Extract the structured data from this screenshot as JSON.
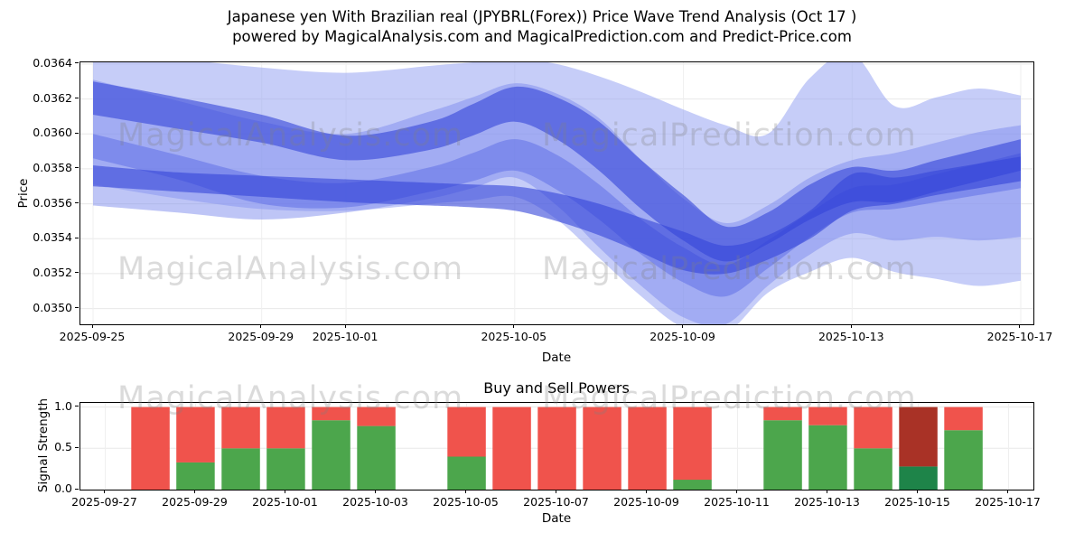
{
  "title": {
    "line1": "Japanese yen With Brazilian real (JPYBRL(Forex)) Price Wave Trend Analysis (Oct 17 )",
    "line2": "powered by MagicalAnalysis.com and MagicalPrediction.com and Predict-Price.com"
  },
  "watermarks": {
    "analysis": "MagicalAnalysis.com",
    "prediction": "MagicalPrediction.com"
  },
  "chart_data": [
    {
      "type": "area",
      "title": "Japanese yen With Brazilian real (JPYBRL(Forex)) Price Wave Trend Analysis (Oct 17 )",
      "xlabel": "Date",
      "ylabel": "Price",
      "ylim": [
        0.03491,
        0.03641
      ],
      "x_days_from": "2025-09-25",
      "x": [
        0,
        2,
        4,
        6,
        8,
        9,
        10,
        11,
        12,
        13,
        14,
        15,
        16,
        17,
        18,
        19,
        20,
        21,
        22
      ],
      "bands": [
        {
          "name": "outer-light",
          "color": "#98a4f2",
          "opacity": 0.55,
          "upper": [
            0.03648,
            0.03643,
            0.03638,
            0.03635,
            0.03639,
            0.03641,
            0.03643,
            0.0364,
            0.03633,
            0.03624,
            0.03614,
            0.03605,
            0.036,
            0.03632,
            0.03646,
            0.03616,
            0.03621,
            0.03626,
            0.03622
          ],
          "lower": [
            0.03571,
            0.03563,
            0.03557,
            0.03556,
            0.0356,
            0.03562,
            0.03564,
            0.03551,
            0.03529,
            0.03507,
            0.03489,
            0.03486,
            0.03509,
            0.03521,
            0.03529,
            0.03521,
            0.03517,
            0.03513,
            0.03516
          ]
        },
        {
          "name": "mid-light",
          "color": "#7d8bee",
          "opacity": 0.5,
          "upper": [
            0.03631,
            0.03619,
            0.03607,
            0.036,
            0.03613,
            0.03621,
            0.03629,
            0.03623,
            0.03609,
            0.03585,
            0.03563,
            0.03549,
            0.03559,
            0.03575,
            0.03585,
            0.03589,
            0.03595,
            0.03601,
            0.03605
          ],
          "lower": [
            0.03559,
            0.03555,
            0.03551,
            0.03555,
            0.03563,
            0.03569,
            0.03575,
            0.03559,
            0.03535,
            0.03513,
            0.03495,
            0.03491,
            0.03513,
            0.03531,
            0.03543,
            0.03539,
            0.03541,
            0.03539,
            0.03541
          ]
        },
        {
          "name": "mid",
          "color": "#5a6ae6",
          "opacity": 0.5,
          "upper": [
            0.036,
            0.03588,
            0.03576,
            0.03572,
            0.03581,
            0.03589,
            0.03597,
            0.03588,
            0.03571,
            0.03551,
            0.03535,
            0.03525,
            0.03539,
            0.03555,
            0.03569,
            0.03571,
            0.03577,
            0.03583,
            0.03589
          ],
          "lower": [
            0.03586,
            0.03574,
            0.0356,
            0.03558,
            0.03567,
            0.03573,
            0.03579,
            0.03568,
            0.03551,
            0.03531,
            0.03515,
            0.03507,
            0.03523,
            0.03541,
            0.03555,
            0.03557,
            0.03561,
            0.03565,
            0.03569
          ]
        },
        {
          "name": "core-upper",
          "color": "#3344d9",
          "opacity": 0.6,
          "upper": [
            0.0363,
            0.03621,
            0.03611,
            0.03599,
            0.03607,
            0.03617,
            0.03627,
            0.03621,
            0.03607,
            0.03585,
            0.03565,
            0.03547,
            0.03555,
            0.03571,
            0.03581,
            0.03579,
            0.03585,
            0.03591,
            0.03597
          ],
          "lower": [
            0.03611,
            0.03603,
            0.03595,
            0.03585,
            0.03591,
            0.03599,
            0.03607,
            0.03597,
            0.03579,
            0.03557,
            0.03539,
            0.03527,
            0.03537,
            0.03551,
            0.03561,
            0.03561,
            0.03567,
            0.03573,
            0.03579
          ]
        },
        {
          "name": "core-lower",
          "color": "#3344d9",
          "opacity": 0.6,
          "upper": [
            0.03582,
            0.03578,
            0.03576,
            0.03574,
            0.03572,
            0.03571,
            0.0357,
            0.03566,
            0.0356,
            0.03552,
            0.03544,
            0.03536,
            0.03542,
            0.03556,
            0.03577,
            0.03575,
            0.03579,
            0.03583,
            0.03587
          ],
          "lower": [
            0.0357,
            0.03567,
            0.03564,
            0.03561,
            0.03559,
            0.03558,
            0.03556,
            0.0355,
            0.03542,
            0.03532,
            0.03522,
            0.0352,
            0.03528,
            0.0354,
            0.03556,
            0.0356,
            0.03565,
            0.03569,
            0.03573
          ]
        }
      ],
      "xticks": [
        {
          "label": "2025-09-25",
          "day": 0
        },
        {
          "label": "2025-09-29",
          "day": 4
        },
        {
          "label": "2025-10-01",
          "day": 6
        },
        {
          "label": "2025-10-05",
          "day": 10
        },
        {
          "label": "2025-10-09",
          "day": 14
        },
        {
          "label": "2025-10-13",
          "day": 18
        },
        {
          "label": "2025-10-17",
          "day": 22
        }
      ],
      "yticks": [
        {
          "label": "0.0350",
          "value": 0.035
        },
        {
          "label": "0.0352",
          "value": 0.0352
        },
        {
          "label": "0.0354",
          "value": 0.0354
        },
        {
          "label": "0.0356",
          "value": 0.0356
        },
        {
          "label": "0.0358",
          "value": 0.0358
        },
        {
          "label": "0.0360",
          "value": 0.036
        },
        {
          "label": "0.0362",
          "value": 0.0362
        },
        {
          "label": "0.0364",
          "value": 0.0364
        }
      ]
    },
    {
      "type": "bar",
      "title": "Buy and Sell Powers",
      "xlabel": "Date",
      "ylabel": "Signal Strength",
      "ylim": [
        0,
        1.05
      ],
      "x_days_from": "2025-09-27",
      "colors": {
        "green": "#4ca64c",
        "red": "#f0534c",
        "dark_green": "#1e8449",
        "dark_red": "#a93226"
      },
      "bars": [
        {
          "date": "2025-09-28",
          "day": 1,
          "green": 0.0,
          "red": 1.0,
          "dark": false
        },
        {
          "date": "2025-09-29",
          "day": 2,
          "green": 0.33,
          "red": 0.67,
          "dark": false
        },
        {
          "date": "2025-09-30",
          "day": 3,
          "green": 0.5,
          "red": 0.5,
          "dark": false
        },
        {
          "date": "2025-10-01",
          "day": 4,
          "green": 0.5,
          "red": 0.5,
          "dark": false
        },
        {
          "date": "2025-10-02",
          "day": 5,
          "green": 0.84,
          "red": 0.16,
          "dark": false
        },
        {
          "date": "2025-10-03",
          "day": 6,
          "green": 0.77,
          "red": 0.23,
          "dark": false
        },
        {
          "date": "2025-10-05",
          "day": 8,
          "green": 0.4,
          "red": 0.6,
          "dark": false
        },
        {
          "date": "2025-10-06",
          "day": 9,
          "green": 0.0,
          "red": 1.0,
          "dark": false
        },
        {
          "date": "2025-10-07",
          "day": 10,
          "green": 0.0,
          "red": 1.0,
          "dark": false
        },
        {
          "date": "2025-10-08",
          "day": 11,
          "green": 0.0,
          "red": 1.0,
          "dark": false
        },
        {
          "date": "2025-10-09",
          "day": 12,
          "green": 0.0,
          "red": 1.0,
          "dark": false
        },
        {
          "date": "2025-10-10",
          "day": 13,
          "green": 0.12,
          "red": 0.88,
          "dark": false
        },
        {
          "date": "2025-10-12",
          "day": 15,
          "green": 0.84,
          "red": 0.16,
          "dark": false
        },
        {
          "date": "2025-10-13",
          "day": 16,
          "green": 0.78,
          "red": 0.22,
          "dark": false
        },
        {
          "date": "2025-10-14",
          "day": 17,
          "green": 0.5,
          "red": 0.5,
          "dark": false
        },
        {
          "date": "2025-10-15",
          "day": 18,
          "green": 0.28,
          "red": 0.72,
          "dark": true
        },
        {
          "date": "2025-10-16",
          "day": 19,
          "green": 0.72,
          "red": 0.28,
          "dark": false
        }
      ],
      "xticks": [
        {
          "label": "2025-09-27",
          "day": 0
        },
        {
          "label": "2025-09-29",
          "day": 2
        },
        {
          "label": "2025-10-01",
          "day": 4
        },
        {
          "label": "2025-10-03",
          "day": 6
        },
        {
          "label": "2025-10-05",
          "day": 8
        },
        {
          "label": "2025-10-07",
          "day": 10
        },
        {
          "label": "2025-10-09",
          "day": 12
        },
        {
          "label": "2025-10-11",
          "day": 14
        },
        {
          "label": "2025-10-13",
          "day": 16
        },
        {
          "label": "2025-10-15",
          "day": 18
        },
        {
          "label": "2025-10-17",
          "day": 20
        }
      ],
      "yticks": [
        {
          "label": "0.0",
          "value": 0
        },
        {
          "label": "0.5",
          "value": 0.5
        },
        {
          "label": "1.0",
          "value": 1.0
        }
      ]
    }
  ]
}
